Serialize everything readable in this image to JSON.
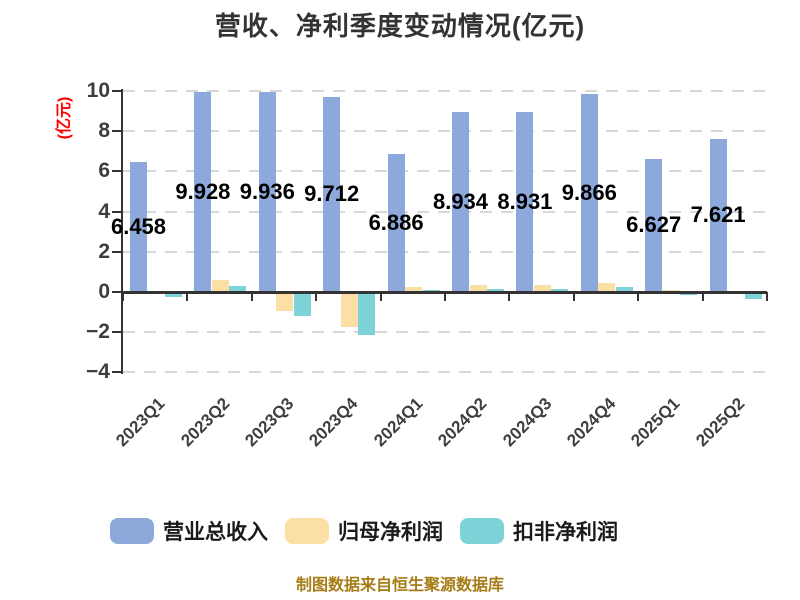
{
  "title": "营收、净利季度变动情况(亿元)",
  "y_axis_label": "(亿元)",
  "footer": "制图数据来自恒生聚源数据库",
  "colors": {
    "axis": "#333333",
    "grid": "#d8d8d8",
    "tick_text": "#3d3d3d",
    "title_text": "#333333",
    "value_label_text": "#000000",
    "y_axis_label_text": "#ff0000",
    "footer_text": "#a67c16"
  },
  "chart_data": {
    "type": "bar",
    "title": "营收、净利季度变动情况(亿元)",
    "ylabel": "(亿元)",
    "unit": "亿元",
    "categories": [
      "2023Q1",
      "2023Q2",
      "2023Q3",
      "2023Q4",
      "2024Q1",
      "2024Q2",
      "2024Q3",
      "2024Q4",
      "2025Q1",
      "2025Q2"
    ],
    "series": [
      {
        "name": "营业总收入",
        "key": "total-revenue",
        "color": "#8da8da",
        "values": [
          6.458,
          9.928,
          9.936,
          9.712,
          6.886,
          8.934,
          8.931,
          9.866,
          6.627,
          7.621
        ],
        "display_labels": [
          "6.458",
          "9.928",
          "9.936",
          "9.712",
          "6.886",
          "8.934",
          "8.931",
          "9.866",
          "6.627",
          "7.621"
        ]
      },
      {
        "name": "归母净利润",
        "key": "net-profit-attributable",
        "color": "#fcdfa4",
        "values": [
          0.02,
          0.6,
          -0.9,
          -1.7,
          0.25,
          0.35,
          0.35,
          0.45,
          0.12,
          0.06
        ]
      },
      {
        "name": "扣非净利润",
        "key": "non-gaap-net-profit",
        "color": "#7ed3d9",
        "values": [
          -0.2,
          0.3,
          -1.15,
          -2.1,
          0.12,
          0.17,
          0.17,
          0.25,
          -0.08,
          -0.3
        ]
      }
    ],
    "ylim": [
      -4,
      10
    ],
    "yticks": [
      10,
      8,
      6,
      4,
      2,
      0,
      -2,
      -4
    ],
    "grid": "horizontal-dashed",
    "legend_position": "bottom"
  }
}
